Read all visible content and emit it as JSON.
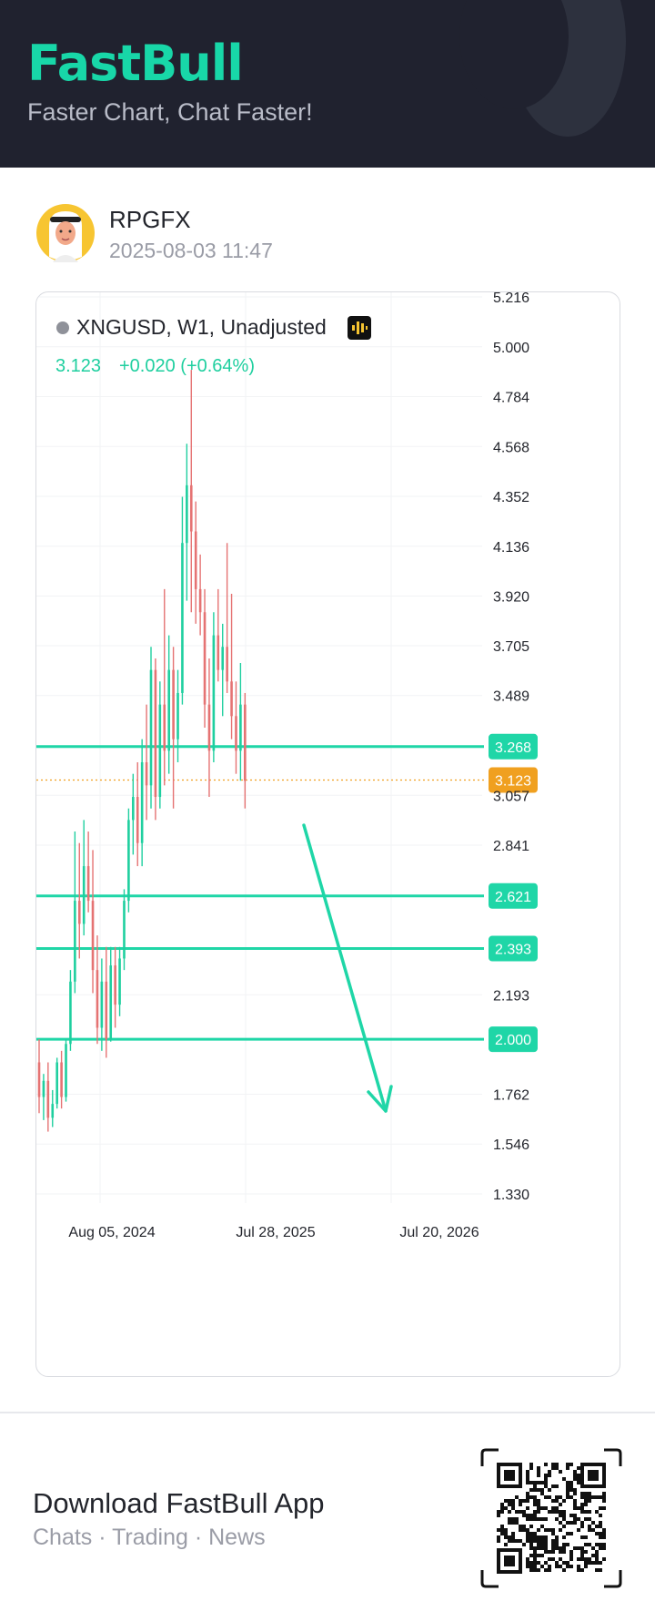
{
  "header": {
    "brand": "FastBull",
    "tagline": "Faster Chart, Chat Faster!"
  },
  "post": {
    "username": "RPGFX",
    "timestamp": "2025-08-03 11:47"
  },
  "chart": {
    "symbol_line": "XNGUSD, W1, Unadjusted",
    "last_price": "3.123",
    "change": "+0.020 (+0.64%)",
    "colors": {
      "up": "#1fcf9f",
      "down": "#e57373",
      "level": "#1fd6a7",
      "price_tag": "#f0a020"
    }
  },
  "chart_data": {
    "type": "candlestick",
    "title": "XNGUSD, W1, Unadjusted",
    "y_ticks": [
      "5.216",
      "5.000",
      "4.784",
      "4.568",
      "4.352",
      "4.136",
      "3.920",
      "3.705",
      "3.489",
      "3.057",
      "2.841",
      "2.193",
      "1.762",
      "1.546",
      "1.330"
    ],
    "x_ticks": [
      "Aug 05, 2024",
      "Jul 28, 2025",
      "Jul 20, 2026"
    ],
    "ylim": [
      1.25,
      5.22
    ],
    "horizontal_levels": [
      "3.268",
      "2.621",
      "2.393",
      "2.000"
    ],
    "current_price": "3.123",
    "annotation": "downward arrow from ~3.1 toward ~2.1",
    "candles": [
      {
        "o": 1.9,
        "h": 2.0,
        "l": 1.68,
        "c": 1.75
      },
      {
        "o": 1.75,
        "h": 1.85,
        "l": 1.65,
        "c": 1.82
      },
      {
        "o": 1.82,
        "h": 1.9,
        "l": 1.6,
        "c": 1.66
      },
      {
        "o": 1.66,
        "h": 1.78,
        "l": 1.62,
        "c": 1.72
      },
      {
        "o": 1.72,
        "h": 1.92,
        "l": 1.7,
        "c": 1.9
      },
      {
        "o": 1.9,
        "h": 1.95,
        "l": 1.7,
        "c": 1.75
      },
      {
        "o": 1.75,
        "h": 2.0,
        "l": 1.73,
        "c": 1.98
      },
      {
        "o": 1.98,
        "h": 2.3,
        "l": 1.95,
        "c": 2.25
      },
      {
        "o": 2.25,
        "h": 2.9,
        "l": 2.2,
        "c": 2.6
      },
      {
        "o": 2.6,
        "h": 2.85,
        "l": 2.35,
        "c": 2.5
      },
      {
        "o": 2.5,
        "h": 2.95,
        "l": 2.45,
        "c": 2.75
      },
      {
        "o": 2.75,
        "h": 2.9,
        "l": 2.55,
        "c": 2.6
      },
      {
        "o": 2.6,
        "h": 2.82,
        "l": 2.2,
        "c": 2.3
      },
      {
        "o": 2.3,
        "h": 2.45,
        "l": 1.98,
        "c": 2.05
      },
      {
        "o": 2.05,
        "h": 2.35,
        "l": 1.95,
        "c": 2.25
      },
      {
        "o": 2.25,
        "h": 2.4,
        "l": 1.92,
        "c": 2.0
      },
      {
        "o": 2.0,
        "h": 2.4,
        "l": 1.99,
        "c": 2.32
      },
      {
        "o": 2.32,
        "h": 2.4,
        "l": 2.05,
        "c": 2.15
      },
      {
        "o": 2.15,
        "h": 2.4,
        "l": 2.1,
        "c": 2.35
      },
      {
        "o": 2.35,
        "h": 2.65,
        "l": 2.3,
        "c": 2.6
      },
      {
        "o": 2.6,
        "h": 3.0,
        "l": 2.55,
        "c": 2.95
      },
      {
        "o": 2.95,
        "h": 3.15,
        "l": 2.8,
        "c": 3.05
      },
      {
        "o": 3.05,
        "h": 3.2,
        "l": 2.75,
        "c": 2.85
      },
      {
        "o": 2.85,
        "h": 3.3,
        "l": 2.75,
        "c": 3.2
      },
      {
        "o": 3.2,
        "h": 3.45,
        "l": 2.95,
        "c": 3.1
      },
      {
        "o": 3.1,
        "h": 3.7,
        "l": 3.0,
        "c": 3.6
      },
      {
        "o": 3.6,
        "h": 3.65,
        "l": 2.95,
        "c": 3.05
      },
      {
        "o": 3.05,
        "h": 3.55,
        "l": 3.0,
        "c": 3.45
      },
      {
        "o": 3.45,
        "h": 3.95,
        "l": 3.1,
        "c": 3.25
      },
      {
        "o": 3.25,
        "h": 3.75,
        "l": 3.15,
        "c": 3.6
      },
      {
        "o": 3.6,
        "h": 3.7,
        "l": 3.0,
        "c": 3.3
      },
      {
        "o": 3.3,
        "h": 3.6,
        "l": 3.2,
        "c": 3.5
      },
      {
        "o": 3.5,
        "h": 4.35,
        "l": 3.45,
        "c": 4.15
      },
      {
        "o": 4.15,
        "h": 4.58,
        "l": 3.9,
        "c": 4.4
      },
      {
        "o": 4.4,
        "h": 4.9,
        "l": 3.85,
        "c": 4.2
      },
      {
        "o": 4.2,
        "h": 4.33,
        "l": 3.8,
        "c": 3.95
      },
      {
        "o": 3.95,
        "h": 4.1,
        "l": 3.75,
        "c": 3.85
      },
      {
        "o": 3.85,
        "h": 3.95,
        "l": 3.35,
        "c": 3.45
      },
      {
        "o": 3.45,
        "h": 3.65,
        "l": 3.05,
        "c": 3.25
      },
      {
        "o": 3.25,
        "h": 3.85,
        "l": 3.2,
        "c": 3.75
      },
      {
        "o": 3.75,
        "h": 3.95,
        "l": 3.55,
        "c": 3.6
      },
      {
        "o": 3.6,
        "h": 3.8,
        "l": 3.4,
        "c": 3.7
      },
      {
        "o": 3.7,
        "h": 4.15,
        "l": 3.5,
        "c": 3.55
      },
      {
        "o": 3.55,
        "h": 3.93,
        "l": 3.3,
        "c": 3.4
      },
      {
        "o": 3.4,
        "h": 3.55,
        "l": 3.15,
        "c": 3.25
      },
      {
        "o": 3.25,
        "h": 3.63,
        "l": 3.12,
        "c": 3.45
      },
      {
        "o": 3.45,
        "h": 3.5,
        "l": 3.0,
        "c": 3.12
      }
    ]
  },
  "footer": {
    "title": "Download FastBull App",
    "subtitle": "Chats · Trading · News"
  }
}
